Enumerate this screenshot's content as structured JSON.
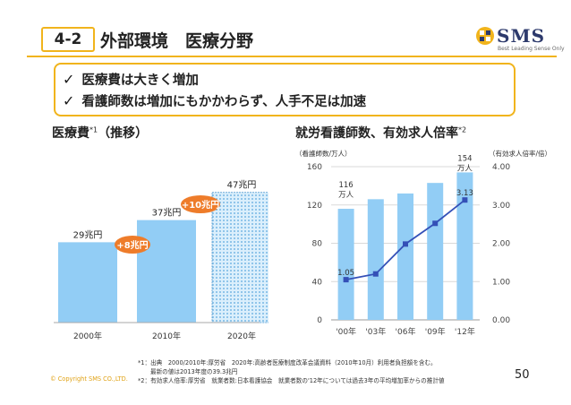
{
  "header": {
    "section": "4-2",
    "title": "外部環境　医療分野",
    "logo_text": "SMS",
    "logo_sub": "Best Leading Sense Only",
    "colors": {
      "accent": "#f1b41c",
      "navy": "#2d3a6c",
      "bar": "#92cdf5",
      "line": "#3450b7",
      "callout": "#ee7c2a"
    }
  },
  "summary": {
    "bullets": [
      "医療費は大きく増加",
      "看護師数は増加にもかかわらず、人手不足は加速"
    ]
  },
  "left_panel": {
    "title": "医療費",
    "note_ref": "*1",
    "suffix": "（推移）"
  },
  "right_panel": {
    "title": "就労看護師数、有効求人倍率",
    "note_ref": "*2"
  },
  "chart_data": [
    {
      "type": "bar",
      "title": "医療費（推移）",
      "categories": [
        "2000年",
        "2010年",
        "2020年"
      ],
      "values": [
        29,
        37,
        47
      ],
      "data_labels": [
        "29兆円",
        "37兆円",
        "47兆円"
      ],
      "ylim": [
        0,
        55
      ],
      "projected": [
        false,
        false,
        true
      ],
      "annotations": [
        "+8兆円",
        "+10兆円"
      ]
    },
    {
      "type": "bar",
      "title": "就労看護師数、有効求人倍率",
      "categories": [
        "'00年",
        "'03年",
        "'06年",
        "'09年",
        "'12年"
      ],
      "left_axis_label": "（看護師数/万人）",
      "right_axis_label": "（有効求人倍率/倍）",
      "left_ticks": [
        "0",
        "40",
        "80",
        "120",
        "160"
      ],
      "right_ticks": [
        "0.00",
        "1.00",
        "2.00",
        "3.00",
        "4.00"
      ],
      "ylim": [
        0,
        160
      ],
      "y2lim": [
        0,
        4
      ],
      "series": [
        {
          "name": "看護師数",
          "type": "bar",
          "values": [
            116,
            126,
            132,
            143,
            154
          ]
        },
        {
          "name": "有効求人倍率",
          "type": "line",
          "values": [
            1.05,
            1.2,
            1.98,
            2.52,
            3.13
          ]
        }
      ],
      "labels": {
        "first_bar": [
          "116",
          "万人"
        ],
        "last_bar": [
          "154",
          "万人"
        ],
        "first_ratio": "1.05",
        "last_ratio": "3.13"
      }
    }
  ],
  "footnotes": {
    "note1_line1": "*1：出典　2000/2010年:厚労省　2020年:高齢者医療制度改革会議資料（2010年10月）利用者負担額を含む。",
    "note1_line2": "最新の値は2013年度の39.3兆円",
    "note2": "*2：有効求人倍率:厚労省　就業者数:日本看護協会　就業者数の'12年については過去3年の平均増加率からの推計値"
  },
  "footer": {
    "copyright": "© Copyright SMS CO.,LTD.",
    "page": "50"
  }
}
